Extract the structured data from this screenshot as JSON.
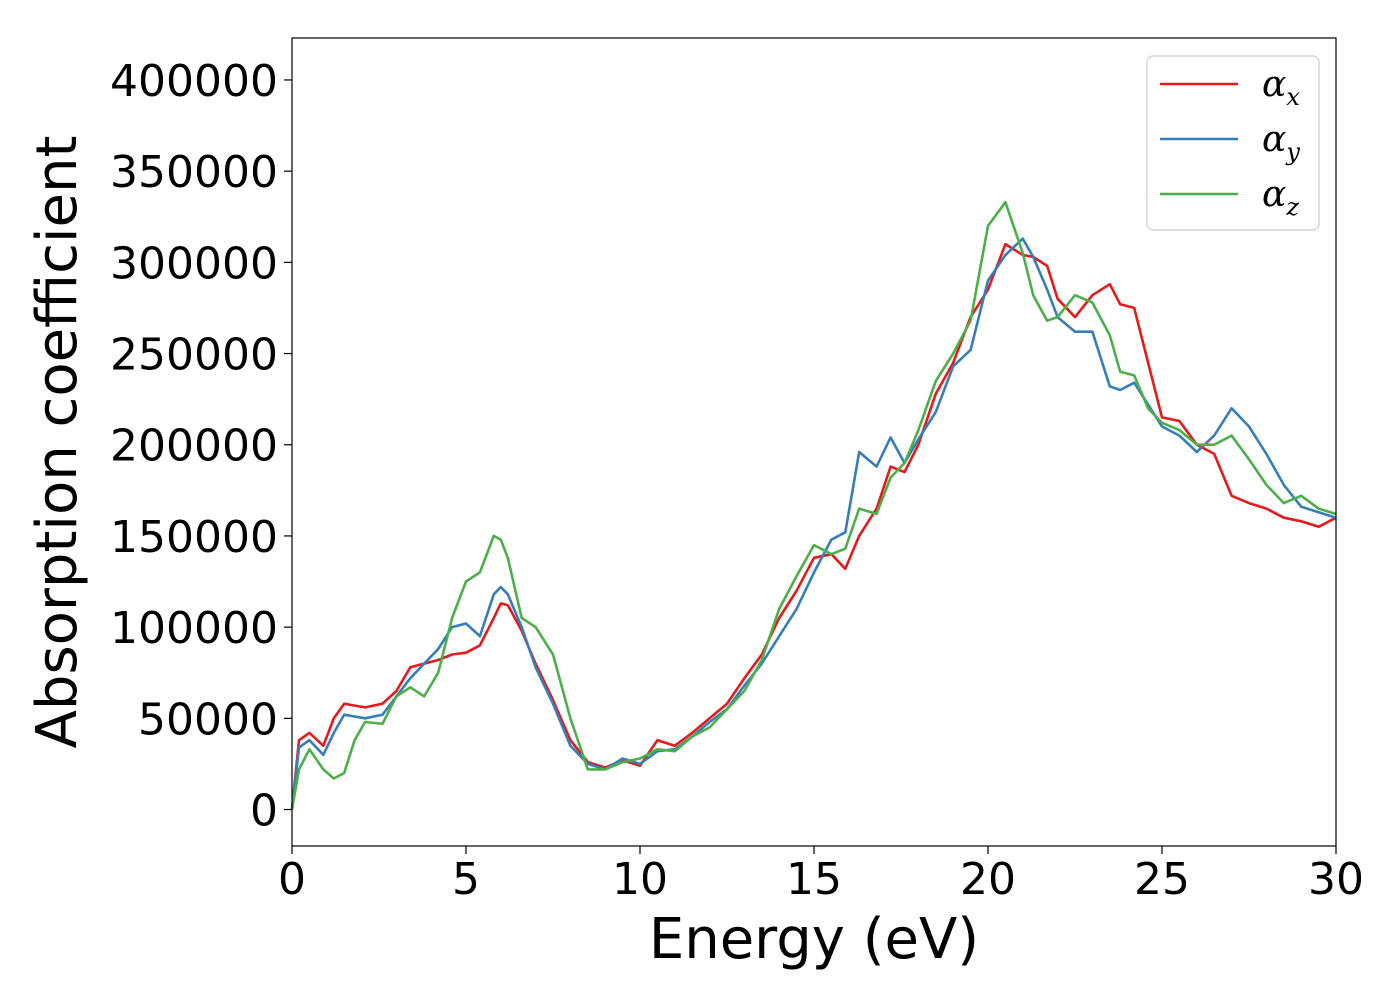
{
  "chart_data": {
    "type": "line",
    "title": "",
    "xlabel": "Energy (eV)",
    "ylabel": "Absorption coefficient",
    "xlim": [
      0,
      30
    ],
    "ylim": [
      -20000,
      423000
    ],
    "xticks": [
      0,
      5,
      10,
      15,
      20,
      25,
      30
    ],
    "yticks": [
      0,
      50000,
      100000,
      150000,
      200000,
      250000,
      300000,
      350000,
      400000
    ],
    "grid": false,
    "legend_position": "top-right",
    "series": [
      {
        "name": "α",
        "subscript": "x",
        "color": "#e41a1c",
        "x": [
          0,
          0.2,
          0.5,
          0.9,
          1.2,
          1.5,
          1.8,
          2.1,
          2.6,
          3.0,
          3.4,
          3.8,
          4.2,
          4.6,
          5.0,
          5.4,
          5.8,
          6.0,
          6.2,
          6.6,
          7.0,
          7.5,
          8.0,
          8.5,
          9.0,
          9.5,
          10.0,
          10.5,
          11.0,
          11.5,
          12.0,
          12.5,
          13.0,
          13.5,
          14.0,
          14.5,
          15.0,
          15.5,
          15.9,
          16.3,
          16.8,
          17.2,
          17.6,
          18.0,
          18.5,
          19.0,
          19.5,
          20.0,
          20.5,
          21.0,
          21.3,
          21.7,
          22.0,
          22.5,
          23.0,
          23.5,
          23.8,
          24.2,
          24.6,
          25.0,
          25.5,
          26.0,
          26.5,
          27.0,
          27.5,
          28.0,
          28.5,
          29.0,
          29.5,
          30.0
        ],
        "y": [
          0,
          38000,
          42000,
          35000,
          50000,
          58000,
          57000,
          56000,
          58000,
          65000,
          78000,
          80000,
          82000,
          85000,
          86000,
          90000,
          105000,
          113000,
          112000,
          98000,
          80000,
          60000,
          38000,
          26000,
          23000,
          27000,
          24000,
          38000,
          35000,
          42000,
          50000,
          58000,
          72000,
          85000,
          105000,
          120000,
          138000,
          140000,
          132000,
          150000,
          165000,
          188000,
          185000,
          200000,
          228000,
          245000,
          270000,
          285000,
          310000,
          304000,
          303000,
          298000,
          280000,
          270000,
          282000,
          288000,
          277000,
          275000,
          245000,
          215000,
          213000,
          200000,
          195000,
          172000,
          168000,
          165000,
          160000,
          158000,
          155000,
          160000
        ]
      },
      {
        "name": "α",
        "subscript": "y",
        "color": "#377eb8",
        "x": [
          0,
          0.2,
          0.5,
          0.9,
          1.2,
          1.5,
          1.8,
          2.1,
          2.6,
          3.0,
          3.4,
          3.8,
          4.2,
          4.6,
          5.0,
          5.4,
          5.8,
          6.0,
          6.2,
          6.6,
          7.0,
          7.5,
          8.0,
          8.5,
          9.0,
          9.5,
          10.0,
          10.5,
          11.0,
          11.5,
          12.0,
          12.5,
          13.0,
          13.5,
          14.0,
          14.5,
          15.0,
          15.5,
          15.9,
          16.3,
          16.8,
          17.2,
          17.6,
          18.0,
          18.5,
          19.0,
          19.5,
          20.0,
          20.5,
          21.0,
          21.3,
          21.7,
          22.0,
          22.5,
          23.0,
          23.5,
          23.8,
          24.2,
          24.6,
          25.0,
          25.5,
          26.0,
          26.5,
          27.0,
          27.5,
          28.0,
          28.5,
          29.0,
          29.5,
          30.0
        ],
        "y": [
          0,
          34000,
          38000,
          30000,
          42000,
          52000,
          51000,
          50000,
          52000,
          62000,
          72000,
          80000,
          88000,
          100000,
          102000,
          95000,
          118000,
          122000,
          118000,
          100000,
          78000,
          58000,
          35000,
          25000,
          22000,
          28000,
          25000,
          32000,
          33000,
          40000,
          48000,
          55000,
          68000,
          80000,
          95000,
          110000,
          130000,
          148000,
          152000,
          196000,
          188000,
          204000,
          190000,
          203000,
          218000,
          243000,
          252000,
          290000,
          304000,
          313000,
          303000,
          285000,
          270000,
          262000,
          262000,
          232000,
          230000,
          234000,
          222000,
          210000,
          205000,
          196000,
          205000,
          220000,
          210000,
          195000,
          178000,
          166000,
          163000,
          160000
        ]
      },
      {
        "name": "α",
        "subscript": "z",
        "color": "#4daf4a",
        "x": [
          0,
          0.2,
          0.5,
          0.9,
          1.2,
          1.5,
          1.8,
          2.1,
          2.6,
          3.0,
          3.4,
          3.8,
          4.2,
          4.6,
          5.0,
          5.4,
          5.8,
          6.0,
          6.2,
          6.6,
          7.0,
          7.5,
          8.0,
          8.5,
          9.0,
          9.5,
          10.0,
          10.5,
          11.0,
          11.5,
          12.0,
          12.5,
          13.0,
          13.5,
          14.0,
          14.5,
          15.0,
          15.5,
          15.9,
          16.3,
          16.8,
          17.2,
          17.6,
          18.0,
          18.5,
          19.0,
          19.5,
          20.0,
          20.5,
          21.0,
          21.3,
          21.7,
          22.0,
          22.5,
          23.0,
          23.5,
          23.8,
          24.2,
          24.6,
          25.0,
          25.5,
          26.0,
          26.5,
          27.0,
          27.5,
          28.0,
          28.5,
          29.0,
          29.5,
          30.0
        ],
        "y": [
          0,
          22000,
          33000,
          22000,
          17000,
          20000,
          38000,
          48000,
          47000,
          62000,
          67000,
          62000,
          75000,
          105000,
          125000,
          130000,
          150000,
          148000,
          138000,
          105000,
          100000,
          85000,
          50000,
          22000,
          22000,
          26000,
          28000,
          33000,
          32000,
          40000,
          45000,
          55000,
          65000,
          82000,
          110000,
          128000,
          145000,
          140000,
          143000,
          165000,
          162000,
          182000,
          190000,
          208000,
          235000,
          250000,
          268000,
          320000,
          333000,
          305000,
          282000,
          268000,
          270000,
          282000,
          278000,
          260000,
          240000,
          238000,
          220000,
          212000,
          208000,
          200000,
          200000,
          205000,
          192000,
          178000,
          168000,
          172000,
          165000,
          162000
        ]
      }
    ]
  }
}
